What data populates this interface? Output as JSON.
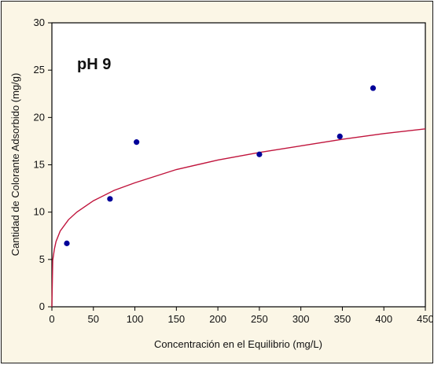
{
  "chart_data": {
    "type": "scatter",
    "xlabel": "Concentración en el Equilibrio (mg/L)",
    "ylabel": "Cantidad de Colorante Adsorbido (mg/g)",
    "annotation": "pH 9",
    "xlim": [
      0,
      450
    ],
    "ylim": [
      0,
      30
    ],
    "xticks": [
      0,
      50,
      100,
      150,
      200,
      250,
      300,
      350,
      400,
      450
    ],
    "yticks": [
      0,
      5,
      10,
      15,
      20,
      25,
      30
    ],
    "grid": false,
    "series": [
      {
        "type": "scatter",
        "color": "#000099",
        "points": [
          {
            "x": 18,
            "y": 6.7
          },
          {
            "x": 70,
            "y": 11.4
          },
          {
            "x": 102,
            "y": 17.4
          },
          {
            "x": 250,
            "y": 16.1
          },
          {
            "x": 347,
            "y": 18.0
          },
          {
            "x": 387,
            "y": 23.1
          }
        ]
      },
      {
        "type": "line",
        "color": "#c0143c",
        "fit": "freundlich",
        "x": [
          1,
          3,
          5,
          10,
          20,
          30,
          50,
          75,
          100,
          150,
          200,
          250,
          300,
          350,
          400,
          450
        ],
        "y": [
          4.9,
          6.1,
          6.9,
          8.0,
          9.2,
          10.0,
          11.2,
          12.3,
          13.1,
          14.5,
          15.5,
          16.3,
          17.0,
          17.7,
          18.3,
          18.8
        ]
      }
    ]
  }
}
